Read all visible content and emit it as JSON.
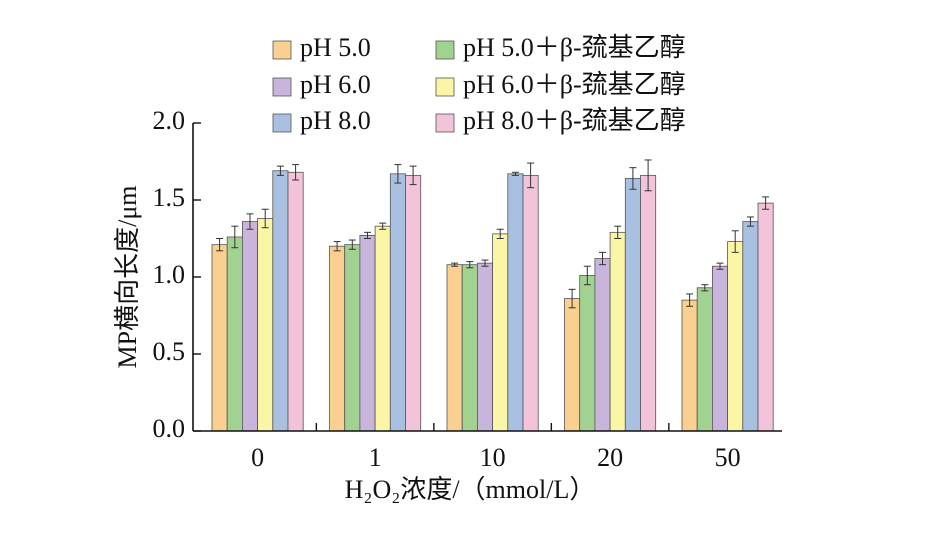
{
  "chart_data": {
    "type": "bar",
    "ylabel": "MP横向长度/μm",
    "xlabel": "H₂O₂浓度/（mmol/L）",
    "categories": [
      "0",
      "1",
      "10",
      "20",
      "50"
    ],
    "ylim": [
      0.0,
      2.0
    ],
    "yticks": [
      "0.0",
      "0.5",
      "1.0",
      "1.5",
      "2.0"
    ],
    "series": [
      {
        "name": "pH 5.0",
        "color": "#f9d08f",
        "values": [
          1.21,
          1.2,
          1.08,
          0.86,
          0.85
        ],
        "errors": [
          0.04,
          0.03,
          0.01,
          0.06,
          0.04
        ]
      },
      {
        "name": "pH 5.0＋β-巯基乙醇",
        "color": "#a2d292",
        "values": [
          1.26,
          1.21,
          1.08,
          1.01,
          0.93
        ],
        "errors": [
          0.07,
          0.03,
          0.02,
          0.06,
          0.02
        ]
      },
      {
        "name": "pH 6.0",
        "color": "#c9b5db",
        "values": [
          1.36,
          1.27,
          1.09,
          1.12,
          1.07
        ],
        "errors": [
          0.05,
          0.02,
          0.02,
          0.04,
          0.02
        ]
      },
      {
        "name": "pH 6.0＋β-巯基乙醇",
        "color": "#fbf5a6",
        "values": [
          1.38,
          1.33,
          1.28,
          1.29,
          1.23
        ],
        "errors": [
          0.06,
          0.02,
          0.03,
          0.04,
          0.07
        ]
      },
      {
        "name": "pH 8.0",
        "color": "#a9c1e1",
        "values": [
          1.69,
          1.67,
          1.67,
          1.64,
          1.36
        ],
        "errors": [
          0.03,
          0.06,
          0.01,
          0.07,
          0.03
        ]
      },
      {
        "name": "pH 8.0＋β-巯基乙醇",
        "color": "#f2c3d9",
        "values": [
          1.68,
          1.66,
          1.66,
          1.66,
          1.48
        ],
        "errors": [
          0.05,
          0.06,
          0.08,
          0.1,
          0.04
        ]
      }
    ],
    "legend_position": "top"
  }
}
